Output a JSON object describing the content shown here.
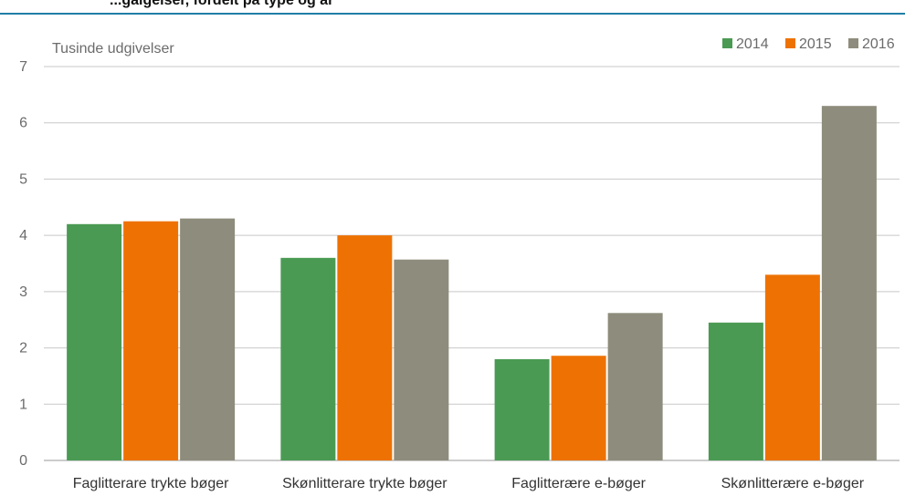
{
  "header": {
    "title_partial": "...gaigelser, fordelt på type og år"
  },
  "chart_data": {
    "type": "bar",
    "ylabel": "Tusinde udgivelser",
    "ylim": [
      0,
      7
    ],
    "yticks": [
      "0",
      "1",
      "2",
      "3",
      "4",
      "5",
      "6",
      "7"
    ],
    "grid": true,
    "legend_position": "top-right",
    "categories": [
      "Faglitterare trykte bøger",
      "Skønlitterare trykte bøger",
      "Faglitterære e-bøger",
      "Skønlitterære e-bøger"
    ],
    "series": [
      {
        "name": "2014",
        "color": "#4a9a53",
        "values": [
          4.2,
          3.6,
          1.8,
          2.45
        ]
      },
      {
        "name": "2015",
        "color": "#ee7203",
        "values": [
          4.25,
          4.0,
          1.86,
          3.3
        ]
      },
      {
        "name": "2016",
        "color": "#8e8c7c",
        "values": [
          4.3,
          3.57,
          2.62,
          6.3
        ]
      }
    ]
  }
}
